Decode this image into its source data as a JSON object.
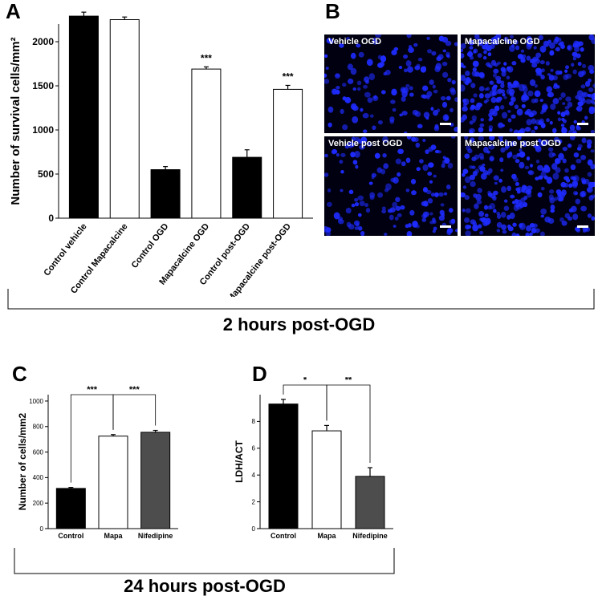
{
  "panels": {
    "A": "A",
    "B": "B",
    "C": "C",
    "D": "D"
  },
  "chart_data": [
    {
      "id": "A",
      "type": "bar",
      "ylabel": "Number of survival cells/mm²",
      "ylim": [
        0,
        2200
      ],
      "yticks": [
        "0",
        "500",
        "1000",
        "1500",
        "2000"
      ],
      "categories": [
        "Control vehicle",
        "Control Mapacalcine",
        "Control OGD",
        "Mapacalcine OGD",
        "Control post-OGD",
        "Mapacalcine post-OGD"
      ],
      "values": [
        2290,
        2250,
        550,
        1690,
        690,
        1460
      ],
      "errors": [
        45,
        30,
        35,
        25,
        85,
        45
      ],
      "fills": [
        "#000000",
        "#ffffff",
        "#000000",
        "#ffffff",
        "#000000",
        "#ffffff"
      ],
      "annotations": [
        "",
        "",
        "",
        "***",
        "",
        "***"
      ]
    },
    {
      "id": "C",
      "type": "bar",
      "ylabel": "Number of cells/mm2",
      "ylim": [
        0,
        1050
      ],
      "yticks": [
        "0",
        "200",
        "400",
        "600",
        "800",
        "1000"
      ],
      "categories": [
        "Control",
        "Mapa",
        "Nifedipine"
      ],
      "values": [
        315,
        725,
        755
      ],
      "errors": [
        8,
        12,
        15
      ],
      "fills": [
        "#000000",
        "#ffffff",
        "#4d4d4d"
      ],
      "brackets": [
        {
          "from": 0,
          "to": 1,
          "label": "***"
        },
        {
          "from": 1,
          "to": 2,
          "label": "***"
        }
      ]
    },
    {
      "id": "D",
      "type": "bar",
      "ylabel": "LDH/ACT",
      "ylim": [
        0,
        10
      ],
      "yticks": [
        "0",
        "2",
        "4",
        "6",
        "8"
      ],
      "categories": [
        "Control",
        "Mapa",
        "Nifedipine"
      ],
      "values": [
        9.3,
        7.3,
        3.9
      ],
      "errors": [
        0.35,
        0.4,
        0.65
      ],
      "fills": [
        "#000000",
        "#ffffff",
        "#4d4d4d"
      ],
      "brackets": [
        {
          "from": 0,
          "to": 1,
          "label": "*"
        },
        {
          "from": 1,
          "to": 2,
          "label": "**"
        }
      ]
    }
  ],
  "micrographs": [
    {
      "label": "Vehicle OGD",
      "density": 140,
      "seed": 11
    },
    {
      "label": "Mapacalcine OGD",
      "density": 320,
      "seed": 23
    },
    {
      "label": "Vehicle post OGD",
      "density": 150,
      "seed": 37
    },
    {
      "label": "Mapacalcine post OGD",
      "density": 260,
      "seed": 51
    }
  ],
  "groups": {
    "two_hours": "2 hours post-OGD",
    "twentyfour_hours": "24 hours post-OGD"
  },
  "colors": {
    "nucleus": "#1e2bff",
    "background": "#000010"
  }
}
